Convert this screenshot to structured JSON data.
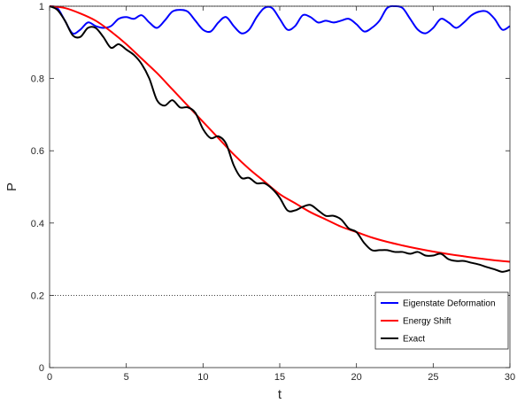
{
  "chart_data": {
    "type": "line",
    "xlabel": "t",
    "ylabel": "P",
    "xlim": [
      0,
      30
    ],
    "ylim": [
      0,
      1
    ],
    "xticks": [
      0,
      5,
      10,
      15,
      20,
      25,
      30
    ],
    "yticks": [
      0,
      0.2,
      0.4,
      0.6,
      0.8,
      1
    ],
    "xtick_labels": [
      "0",
      "5",
      "10",
      "15",
      "20",
      "25",
      "30"
    ],
    "ytick_labels": [
      "0",
      "0.2",
      "0.4",
      "0.6",
      "0.8",
      "1"
    ],
    "reference_lines": [
      0.2,
      1.0
    ],
    "grid": false,
    "legend_position": "bottom-right",
    "series": [
      {
        "name": "Eigenstate Deformation",
        "color": "#0000ff",
        "x": [
          0,
          0.5,
          1,
          1.5,
          2,
          2.5,
          3,
          3.5,
          4,
          4.5,
          5,
          5.5,
          6,
          6.5,
          7,
          7.5,
          8,
          8.5,
          9,
          9.5,
          10,
          10.5,
          11,
          11.5,
          12,
          12.5,
          13,
          13.5,
          14,
          14.5,
          15,
          15.5,
          16,
          16.5,
          17,
          17.5,
          18,
          18.5,
          19,
          19.5,
          20,
          20.5,
          21,
          21.5,
          22,
          22.5,
          23,
          23.5,
          24,
          24.5,
          25,
          25.5,
          26,
          26.5,
          27,
          27.5,
          28,
          28.5,
          29,
          29.5,
          30
        ],
        "y": [
          1.0,
          0.995,
          0.96,
          0.925,
          0.935,
          0.955,
          0.945,
          0.94,
          0.945,
          0.965,
          0.97,
          0.965,
          0.975,
          0.955,
          0.94,
          0.96,
          0.985,
          0.99,
          0.985,
          0.96,
          0.935,
          0.93,
          0.955,
          0.97,
          0.945,
          0.925,
          0.935,
          0.97,
          0.995,
          0.995,
          0.965,
          0.935,
          0.945,
          0.975,
          0.97,
          0.955,
          0.96,
          0.955,
          0.96,
          0.965,
          0.95,
          0.93,
          0.94,
          0.96,
          0.995,
          1.0,
          0.995,
          0.965,
          0.935,
          0.925,
          0.94,
          0.965,
          0.955,
          0.94,
          0.955,
          0.975,
          0.985,
          0.985,
          0.965,
          0.935,
          0.945
        ]
      },
      {
        "name": "Energy Shift",
        "color": "#ff0000",
        "x": [
          0,
          1,
          2,
          3,
          4,
          5,
          6,
          7,
          8,
          9,
          10,
          11,
          12,
          13,
          14,
          15,
          16,
          17,
          18,
          19,
          20,
          21,
          22,
          23,
          24,
          25,
          26,
          27,
          28,
          29,
          30
        ],
        "y": [
          1.0,
          0.995,
          0.98,
          0.96,
          0.93,
          0.895,
          0.855,
          0.815,
          0.77,
          0.725,
          0.68,
          0.635,
          0.59,
          0.55,
          0.515,
          0.48,
          0.455,
          0.43,
          0.41,
          0.39,
          0.375,
          0.36,
          0.348,
          0.338,
          0.329,
          0.321,
          0.314,
          0.308,
          0.302,
          0.297,
          0.293
        ]
      },
      {
        "name": "Exact",
        "color": "#000000",
        "x": [
          0,
          0.5,
          1,
          1.5,
          2,
          2.5,
          3,
          3.5,
          4,
          4.5,
          5,
          5.5,
          6,
          6.5,
          7,
          7.5,
          8,
          8.5,
          9,
          9.5,
          10,
          10.5,
          11,
          11.5,
          12,
          12.5,
          13,
          13.5,
          14,
          14.5,
          15,
          15.5,
          16,
          16.5,
          17,
          17.5,
          18,
          18.5,
          19,
          19.5,
          20,
          20.5,
          21,
          21.5,
          22,
          22.5,
          23,
          23.5,
          24,
          24.5,
          25,
          25.5,
          26,
          26.5,
          27,
          27.5,
          28,
          28.5,
          29,
          29.5,
          30
        ],
        "y": [
          1.0,
          0.99,
          0.96,
          0.92,
          0.915,
          0.94,
          0.94,
          0.915,
          0.885,
          0.895,
          0.88,
          0.865,
          0.84,
          0.8,
          0.74,
          0.725,
          0.74,
          0.72,
          0.72,
          0.705,
          0.66,
          0.635,
          0.64,
          0.62,
          0.56,
          0.525,
          0.525,
          0.51,
          0.51,
          0.495,
          0.47,
          0.435,
          0.435,
          0.445,
          0.45,
          0.435,
          0.42,
          0.42,
          0.41,
          0.385,
          0.375,
          0.345,
          0.325,
          0.325,
          0.325,
          0.32,
          0.32,
          0.315,
          0.32,
          0.31,
          0.31,
          0.315,
          0.3,
          0.295,
          0.295,
          0.29,
          0.285,
          0.278,
          0.272,
          0.265,
          0.27
        ]
      }
    ]
  }
}
